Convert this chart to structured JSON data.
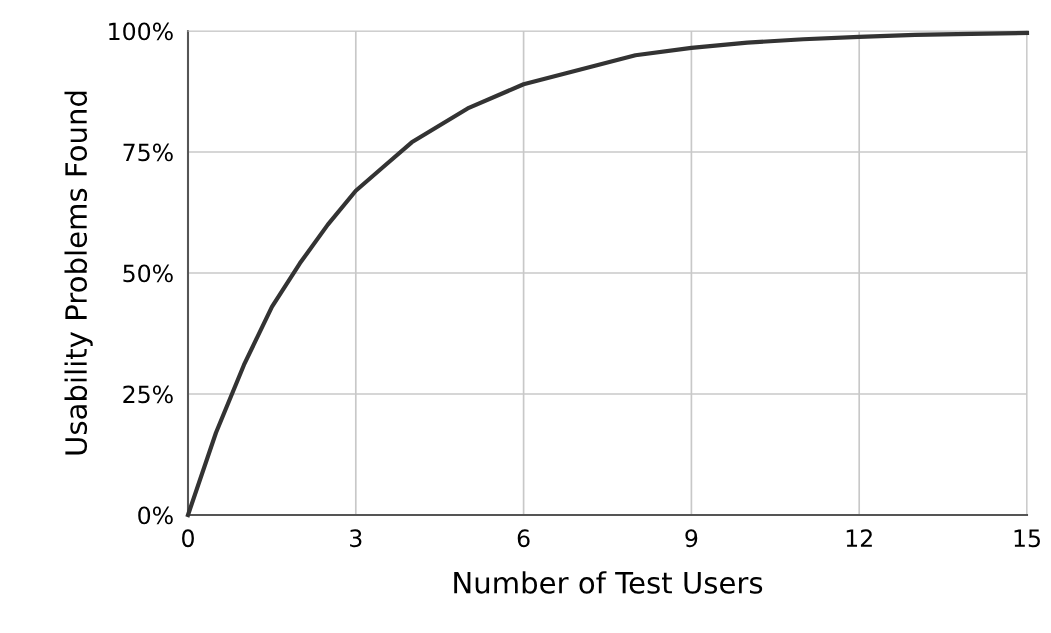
{
  "chart_data": {
    "type": "line",
    "xlabel": "Number of Test Users",
    "ylabel": "Usability Problems Found",
    "x": [
      0,
      0.5,
      1,
      1.5,
      2,
      2.5,
      3,
      3.5,
      4,
      5,
      6,
      7,
      8,
      9,
      10,
      11,
      12,
      13,
      14,
      15
    ],
    "series": [
      {
        "color": "#333333",
        "values": [
          0,
          17,
          31,
          43,
          52,
          60,
          67,
          72,
          77,
          84,
          89,
          92,
          95,
          96.5,
          97.6,
          98.3,
          98.8,
          99.2,
          99.4,
          99.6
        ]
      }
    ],
    "xlim": [
      0,
      15
    ],
    "xticks": [
      0,
      3,
      6,
      9,
      12,
      15
    ],
    "ylim": [
      0,
      100
    ],
    "yticks": [
      {
        "value": 0,
        "label": "0%"
      },
      {
        "value": 25,
        "label": "25%"
      },
      {
        "value": 50,
        "label": "50%"
      },
      {
        "value": 75,
        "label": "75%"
      },
      {
        "value": 100,
        "label": "100%"
      }
    ],
    "grid": true,
    "marker": "none",
    "line_style": "solid"
  }
}
